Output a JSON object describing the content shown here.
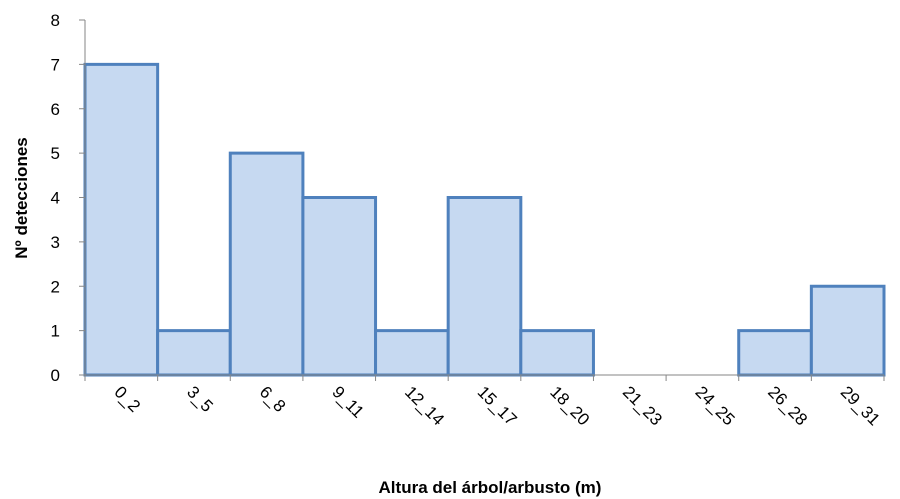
{
  "chart_data": {
    "type": "bar",
    "title": "",
    "xlabel": "Altura del árbol/arbusto (m)",
    "ylabel": "Nº detecciones",
    "categories": [
      "0_2",
      "3_5",
      "6_8",
      "9_11",
      "12_14",
      "15_17",
      "18_20",
      "21_23",
      "24_25",
      "26_28",
      "29_31"
    ],
    "values": [
      7,
      1,
      5,
      4,
      1,
      4,
      1,
      0,
      0,
      1,
      2
    ],
    "ylim": [
      0,
      8
    ],
    "yticks": [
      0,
      1,
      2,
      3,
      4,
      5,
      6,
      7,
      8
    ],
    "grid": false,
    "legend": "none",
    "colors": {
      "bar_fill": "#c6d9f1",
      "bar_stroke": "#4f81bd",
      "axis": "#868686"
    }
  }
}
